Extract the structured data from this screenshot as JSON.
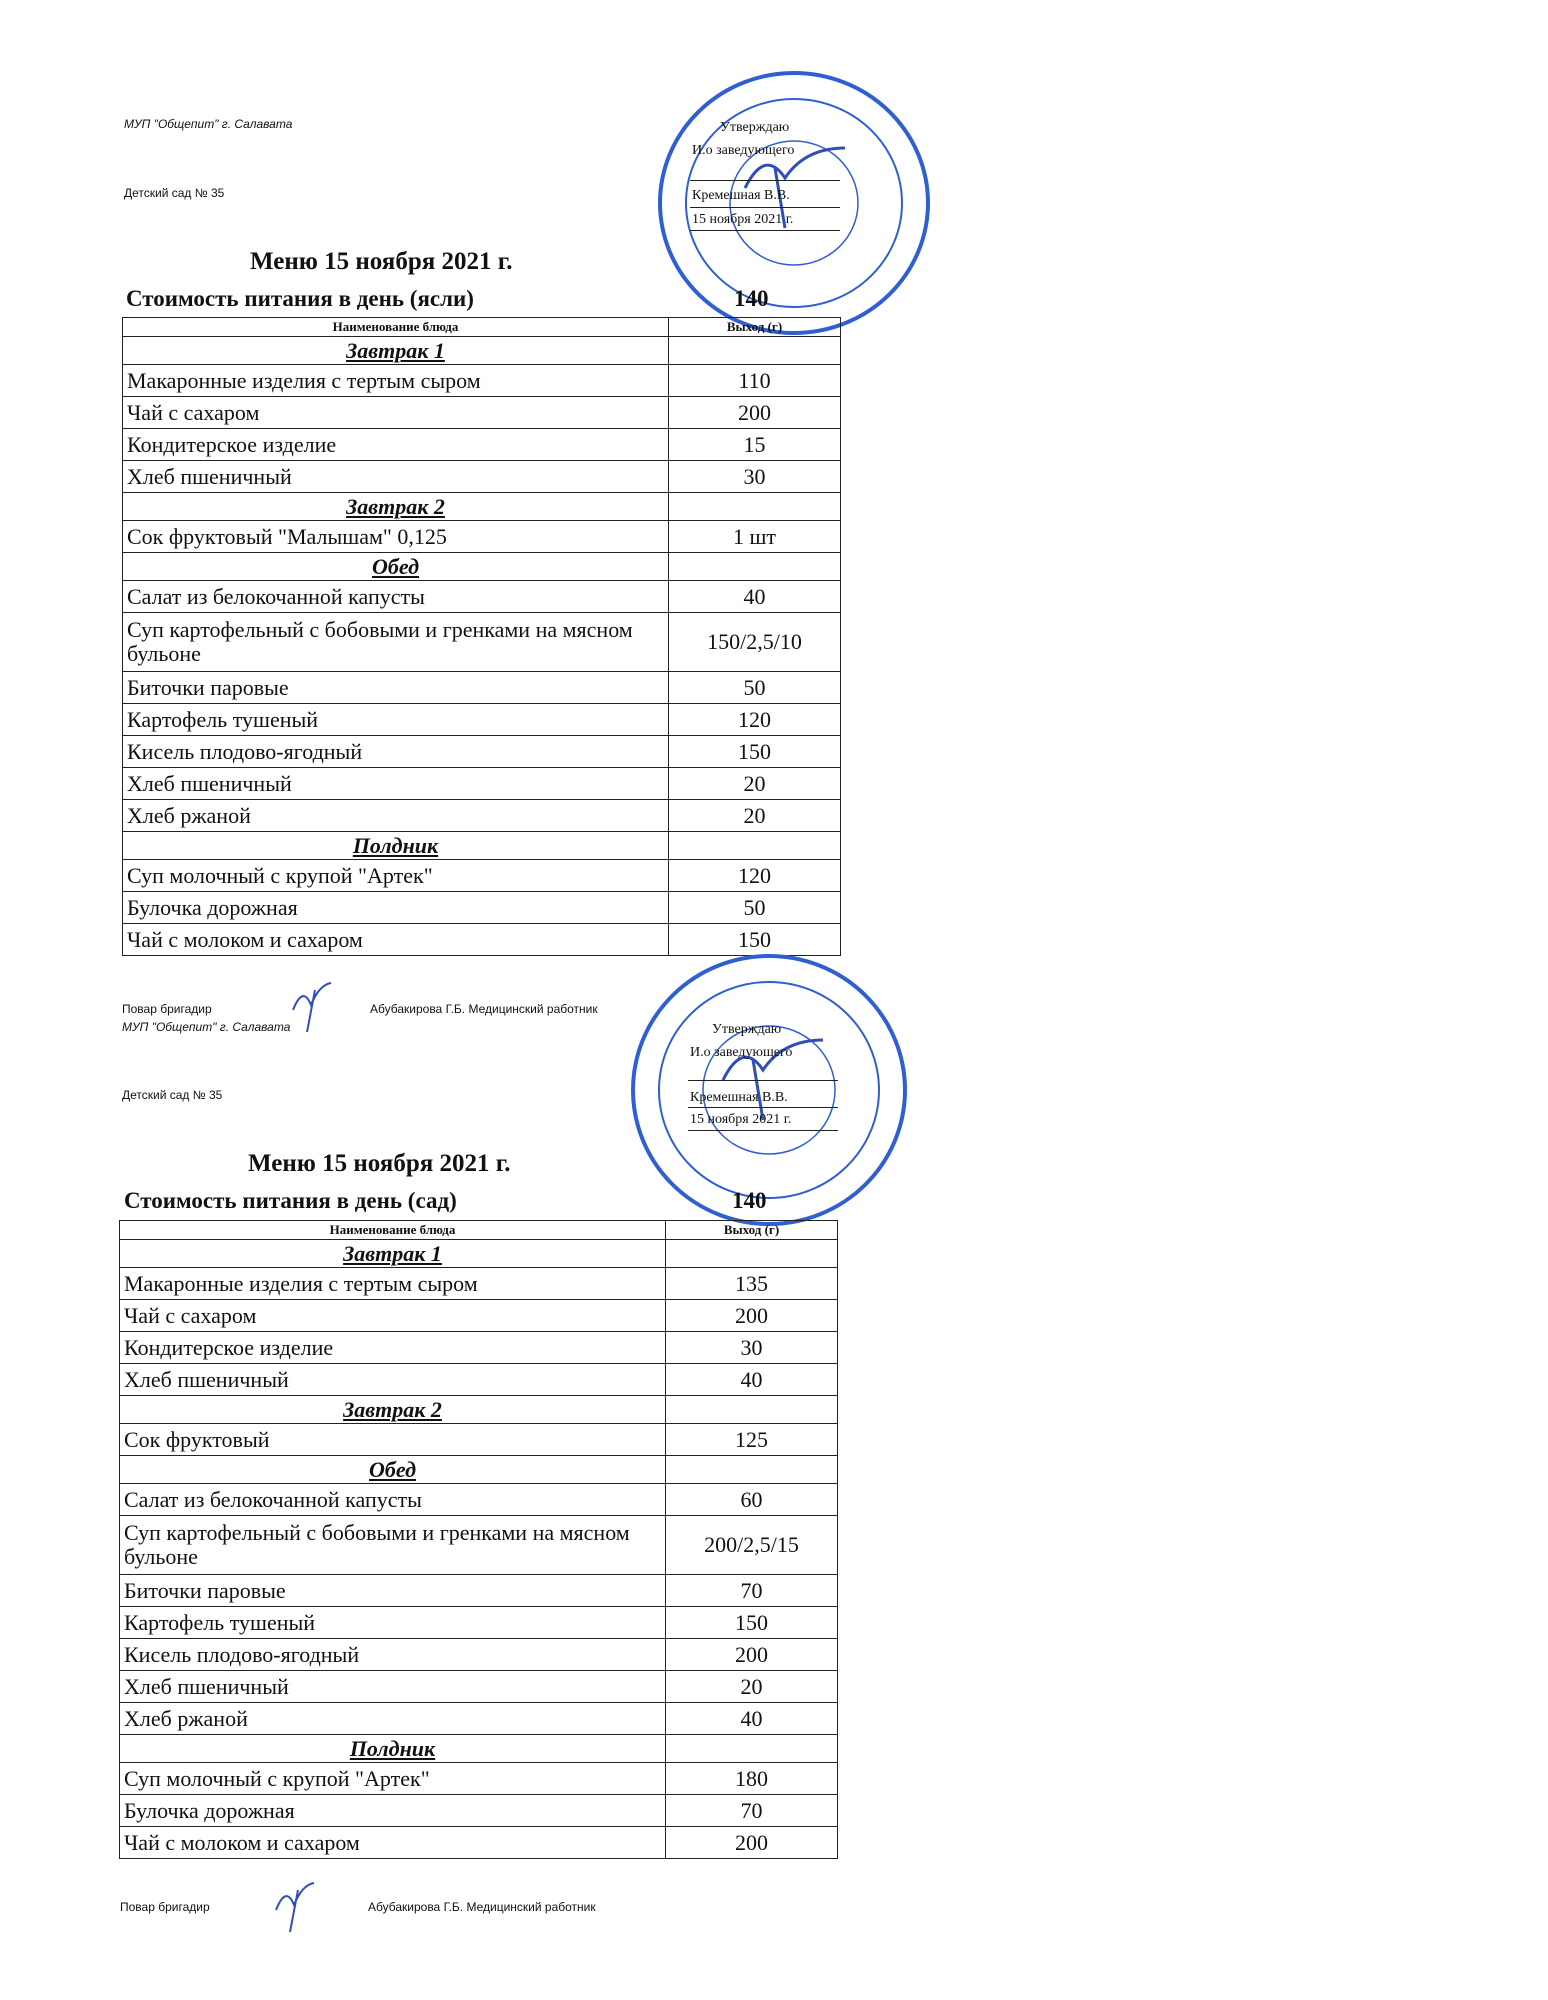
{
  "menus": [
    {
      "org": "МУП \"Общепит\" г. Салавата",
      "kindergarten": "Детский сад № 35",
      "approval": {
        "line1": "Утверждаю",
        "line2": "И.о заведующего",
        "name": "Кремешная В.В.",
        "date": "15 ноября 2021 г."
      },
      "title": "Меню 15 ноября 2021 г.",
      "cost_label": "Стоимость питания в день (ясли)",
      "cost_value": "140",
      "headers": {
        "name": "Наименование блюда",
        "yield": "Выход (г)"
      },
      "rows": [
        {
          "type": "section",
          "name": "Завтрак 1",
          "value": ""
        },
        {
          "type": "item",
          "name": "Макаронные изделия с тертым сыром",
          "value": "110"
        },
        {
          "type": "item",
          "name": "Чай  с сахаром",
          "value": "200"
        },
        {
          "type": "item",
          "name": "Кондитерское изделие",
          "value": "15"
        },
        {
          "type": "item",
          "name": "Хлеб пшеничный",
          "value": "30"
        },
        {
          "type": "section",
          "name": "Завтрак 2",
          "value": ""
        },
        {
          "type": "item",
          "name": "Сок фруктовый \"Малышам\" 0,125",
          "value": "1 шт"
        },
        {
          "type": "section",
          "name": "Обед",
          "value": ""
        },
        {
          "type": "item",
          "name": "Салат из белокочанной капусты",
          "value": "40"
        },
        {
          "type": "two",
          "name": "Суп картофельный с бобовыми и гренками на мясном бульоне",
          "value": "150/2,5/10"
        },
        {
          "type": "item",
          "name": "Биточки паровые",
          "value": "50"
        },
        {
          "type": "item",
          "name": "Картофель тушеный",
          "value": "120"
        },
        {
          "type": "item",
          "name": "Кисель плодово-ягодный",
          "value": "150"
        },
        {
          "type": "item",
          "name": "Хлеб пшеничный",
          "value": "20"
        },
        {
          "type": "item",
          "name": "Хлеб ржаной",
          "value": "20"
        },
        {
          "type": "section",
          "name": "Полдник",
          "value": ""
        },
        {
          "type": "item",
          "name": "Суп молочный с крупой \"Артек\"",
          "value": "120"
        },
        {
          "type": "item",
          "name": "Булочка дорожная",
          "value": "50"
        },
        {
          "type": "item",
          "name": "Чай с  молоком и сахаром",
          "value": "150"
        }
      ],
      "footer": {
        "cook": "Повар бригадир",
        "names": "Абубакирова Г.Б.  Медицинский работник"
      }
    },
    {
      "org": "МУП \"Общепит\" г. Салавата",
      "kindergarten": "Детский сад № 35",
      "approval": {
        "line1": "Утверждаю",
        "line2": "И.о заведующего",
        "name": "Кремешная В.В.",
        "date": "15 ноября 2021 г."
      },
      "title": "Меню 15 ноября 2021 г.",
      "cost_label": "Стоимость питания в день (сад)",
      "cost_value": "140",
      "headers": {
        "name": "Наименование блюда",
        "yield": "Выход (г)"
      },
      "rows": [
        {
          "type": "section",
          "name": "Завтрак 1",
          "value": ""
        },
        {
          "type": "item",
          "name": "Макаронные изделия с тертым сыром",
          "value": "135"
        },
        {
          "type": "item",
          "name": "Чай  с сахаром",
          "value": "200"
        },
        {
          "type": "item",
          "name": "Кондитерское изделие",
          "value": "30"
        },
        {
          "type": "item",
          "name": "Хлеб пшеничный",
          "value": "40"
        },
        {
          "type": "section",
          "name": "Завтрак 2",
          "value": ""
        },
        {
          "type": "item",
          "name": "Сок фруктовый",
          "value": "125"
        },
        {
          "type": "section",
          "name": "Обед",
          "value": ""
        },
        {
          "type": "item",
          "name": "Салат из белокочанной капусты",
          "value": "60"
        },
        {
          "type": "two",
          "name": "Суп картофельный с бобовыми и гренками на мясном бульоне",
          "value": "200/2,5/15"
        },
        {
          "type": "item",
          "name": "Биточки паровые",
          "value": "70"
        },
        {
          "type": "item",
          "name": "Картофель тушеный",
          "value": "150"
        },
        {
          "type": "item",
          "name": "Кисель плодово-ягодный",
          "value": "200"
        },
        {
          "type": "item",
          "name": "Хлеб пшеничный",
          "value": "20"
        },
        {
          "type": "item",
          "name": "Хлеб ржаной",
          "value": "40"
        },
        {
          "type": "section",
          "name": "Полдник",
          "value": ""
        },
        {
          "type": "item",
          "name": "Суп молочный с крупой \"Артек\"",
          "value": "180"
        },
        {
          "type": "item",
          "name": "Булочка дорожная",
          "value": "70"
        },
        {
          "type": "item",
          "name": "Чай с  молоком и сахаром",
          "value": "200"
        }
      ],
      "footer": {
        "cook": "Повар бригадир",
        "names": "Абубакирова Г.Б.  Медицинский работник"
      }
    }
  ],
  "colors": {
    "stamp": "#2f5fd0",
    "ink": "#111111"
  }
}
